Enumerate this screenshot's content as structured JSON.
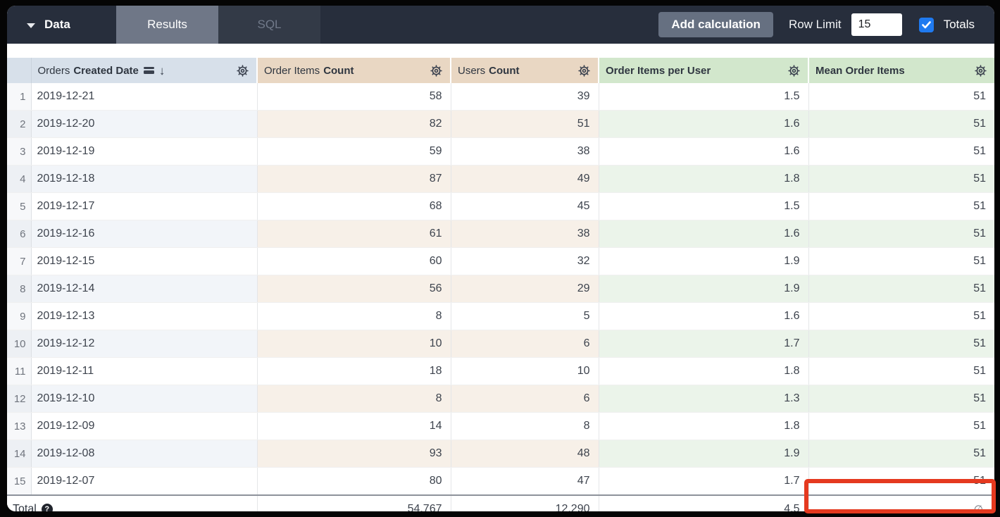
{
  "topbar": {
    "section_label": "Data",
    "tabs": [
      {
        "label": "Results",
        "active": true
      },
      {
        "label": "SQL",
        "active": false
      }
    ],
    "add_calculation_label": "Add calculation",
    "row_limit_label": "Row Limit",
    "row_limit_value": "15",
    "totals_label": "Totals",
    "totals_checked": true
  },
  "table": {
    "columns": [
      {
        "prefix": "Orders",
        "name": "Created Date",
        "type": "dimension",
        "sorted": "descending",
        "icons": [
          "fill-icon",
          "sort-desc-icon",
          "gear-icon"
        ]
      },
      {
        "prefix": "Order Items",
        "name": "Count",
        "type": "measure",
        "icons": [
          "gear-icon"
        ]
      },
      {
        "prefix": "Users",
        "name": "Count",
        "type": "measure",
        "icons": [
          "gear-icon"
        ]
      },
      {
        "prefix": "",
        "name": "Order Items per User",
        "type": "table-calculation",
        "icons": [
          "gear-icon"
        ]
      },
      {
        "prefix": "",
        "name": "Mean Order Items",
        "type": "table-calculation",
        "icons": [
          "gear-icon"
        ]
      }
    ],
    "rows": [
      {
        "num": "1",
        "date": "2019-12-21",
        "order_items_count": "58",
        "users_count": "39",
        "order_items_per_user": "1.5",
        "mean_order_items": "51"
      },
      {
        "num": "2",
        "date": "2019-12-20",
        "order_items_count": "82",
        "users_count": "51",
        "order_items_per_user": "1.6",
        "mean_order_items": "51"
      },
      {
        "num": "3",
        "date": "2019-12-19",
        "order_items_count": "59",
        "users_count": "38",
        "order_items_per_user": "1.6",
        "mean_order_items": "51"
      },
      {
        "num": "4",
        "date": "2019-12-18",
        "order_items_count": "87",
        "users_count": "49",
        "order_items_per_user": "1.8",
        "mean_order_items": "51"
      },
      {
        "num": "5",
        "date": "2019-12-17",
        "order_items_count": "68",
        "users_count": "45",
        "order_items_per_user": "1.5",
        "mean_order_items": "51"
      },
      {
        "num": "6",
        "date": "2019-12-16",
        "order_items_count": "61",
        "users_count": "38",
        "order_items_per_user": "1.6",
        "mean_order_items": "51"
      },
      {
        "num": "7",
        "date": "2019-12-15",
        "order_items_count": "60",
        "users_count": "32",
        "order_items_per_user": "1.9",
        "mean_order_items": "51"
      },
      {
        "num": "8",
        "date": "2019-12-14",
        "order_items_count": "56",
        "users_count": "29",
        "order_items_per_user": "1.9",
        "mean_order_items": "51"
      },
      {
        "num": "9",
        "date": "2019-12-13",
        "order_items_count": "8",
        "users_count": "5",
        "order_items_per_user": "1.6",
        "mean_order_items": "51"
      },
      {
        "num": "10",
        "date": "2019-12-12",
        "order_items_count": "10",
        "users_count": "6",
        "order_items_per_user": "1.7",
        "mean_order_items": "51"
      },
      {
        "num": "11",
        "date": "2019-12-11",
        "order_items_count": "18",
        "users_count": "10",
        "order_items_per_user": "1.8",
        "mean_order_items": "51"
      },
      {
        "num": "12",
        "date": "2019-12-10",
        "order_items_count": "8",
        "users_count": "6",
        "order_items_per_user": "1.3",
        "mean_order_items": "51"
      },
      {
        "num": "13",
        "date": "2019-12-09",
        "order_items_count": "14",
        "users_count": "8",
        "order_items_per_user": "1.8",
        "mean_order_items": "51"
      },
      {
        "num": "14",
        "date": "2019-12-08",
        "order_items_count": "93",
        "users_count": "48",
        "order_items_per_user": "1.9",
        "mean_order_items": "51"
      },
      {
        "num": "15",
        "date": "2019-12-07",
        "order_items_count": "80",
        "users_count": "47",
        "order_items_per_user": "1.7",
        "mean_order_items": "51"
      }
    ],
    "total": {
      "label": "Total",
      "help_icon": "?",
      "order_items_count": "54,767",
      "users_count": "12,290",
      "order_items_per_user": "4.5",
      "mean_order_items": "∅"
    }
  },
  "annotation": {
    "type": "red-highlight-box",
    "target": "total-mean-order-items-cell",
    "color": "#e5391f"
  },
  "colors": {
    "topbar_bg": "#272e3c",
    "active_tab_bg": "#6f7787",
    "dimension_header_bg": "#d7e0ea",
    "measure_header_bg": "#e9d7c3",
    "calc_header_bg": "#d2e7cc",
    "checkbox_blue": "#1f7af0",
    "annotation_red": "#e5391f"
  }
}
